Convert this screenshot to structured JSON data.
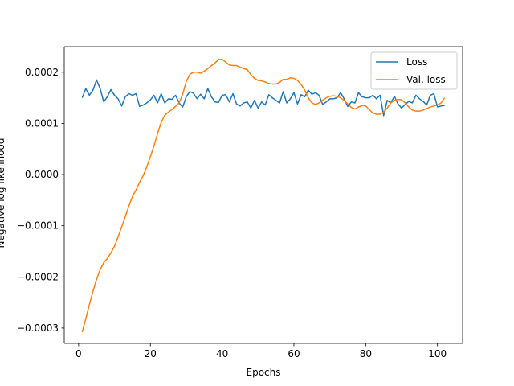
{
  "chart_data": {
    "type": "line",
    "title": "",
    "xlabel": "Epochs",
    "ylabel": "Negative log likelihood",
    "xlim": [
      -4,
      107
    ],
    "ylim": [
      -0.00033,
      0.00025
    ],
    "xticks": [
      0,
      20,
      40,
      60,
      80,
      100
    ],
    "xtick_labels": [
      "0",
      "20",
      "40",
      "60",
      "80",
      "100"
    ],
    "yticks": [
      -0.0003,
      -0.0002,
      -0.0001,
      0.0,
      0.0001,
      0.0002
    ],
    "ytick_labels": [
      "−0.0003",
      "−0.0002",
      "−0.0001",
      "0.0000",
      "0.0001",
      "0.0002"
    ],
    "grid": false,
    "legend_position": "top-right",
    "series": [
      {
        "name": "Loss",
        "color": "#1f77b4",
        "x": [
          1,
          2,
          3,
          4,
          5,
          6,
          7,
          8,
          9,
          10,
          11,
          12,
          13,
          14,
          15,
          16,
          17,
          18,
          19,
          20,
          21,
          22,
          23,
          24,
          25,
          26,
          27,
          28,
          29,
          30,
          31,
          32,
          33,
          34,
          35,
          36,
          37,
          38,
          39,
          40,
          41,
          42,
          43,
          44,
          45,
          46,
          47,
          48,
          49,
          50,
          51,
          52,
          53,
          54,
          55,
          56,
          57,
          58,
          59,
          60,
          61,
          62,
          63,
          64,
          65,
          66,
          67,
          68,
          69,
          70,
          71,
          72,
          73,
          74,
          75,
          76,
          77,
          78,
          79,
          80,
          81,
          82,
          83,
          84,
          85,
          86,
          87,
          88,
          89,
          90,
          91,
          92,
          93,
          94,
          95,
          96,
          97,
          98,
          99,
          100,
          101,
          102
        ],
        "y": [
          0.00015,
          0.000168,
          0.000155,
          0.000165,
          0.000185,
          0.000168,
          0.000142,
          0.000152,
          0.000166,
          0.000155,
          0.000148,
          0.000134,
          0.000152,
          0.000158,
          0.000155,
          0.000158,
          0.000133,
          0.000136,
          0.00014,
          0.000146,
          0.000155,
          0.00014,
          0.000158,
          0.00014,
          0.000148,
          0.000147,
          0.000155,
          0.00014,
          0.000132,
          0.000152,
          0.000162,
          0.000159,
          0.000148,
          0.000157,
          0.000148,
          0.000168,
          0.000152,
          0.000142,
          0.000141,
          0.000155,
          0.000156,
          0.000142,
          0.000158,
          0.000138,
          0.000134,
          0.00014,
          0.000142,
          0.00013,
          0.000145,
          0.00013,
          0.000142,
          0.000136,
          0.000156,
          0.00015,
          0.000145,
          0.00014,
          0.000162,
          0.00014,
          0.000148,
          0.00016,
          0.000138,
          0.000156,
          0.000152,
          0.000165,
          0.000157,
          0.00016,
          0.000155,
          0.000137,
          0.000142,
          0.000148,
          0.000148,
          0.00015,
          0.00016,
          0.000148,
          0.000133,
          0.000142,
          0.00014,
          0.00016,
          0.000152,
          0.00015,
          0.00015,
          0.000155,
          0.000148,
          0.000155,
          0.000115,
          0.000145,
          0.00014,
          0.000153,
          0.000138,
          0.00013,
          0.000137,
          0.000143,
          0.00014,
          0.000155,
          0.000148,
          0.000143,
          0.000136,
          0.000155,
          0.000158,
          0.000132,
          0.000134,
          0.000135
        ]
      },
      {
        "name": "Val. loss",
        "color": "#ff7f0e",
        "x": [
          1,
          2,
          3,
          4,
          5,
          6,
          7,
          8,
          9,
          10,
          11,
          12,
          13,
          14,
          15,
          16,
          17,
          18,
          19,
          20,
          21,
          22,
          23,
          24,
          25,
          26,
          27,
          28,
          29,
          30,
          31,
          32,
          33,
          34,
          35,
          36,
          37,
          38,
          39,
          40,
          41,
          42,
          43,
          44,
          45,
          46,
          47,
          48,
          49,
          50,
          51,
          52,
          53,
          54,
          55,
          56,
          57,
          58,
          59,
          60,
          61,
          62,
          63,
          64,
          65,
          66,
          67,
          68,
          69,
          70,
          71,
          72,
          73,
          74,
          75,
          76,
          77,
          78,
          79,
          80,
          81,
          82,
          83,
          84,
          85,
          86,
          87,
          88,
          89,
          90,
          91,
          92,
          93,
          94,
          95,
          96,
          97,
          98,
          99,
          100,
          101,
          102
        ],
        "y": [
          -0.000308,
          -0.000282,
          -0.000254,
          -0.000228,
          -0.000205,
          -0.000186,
          -0.000172,
          -0.000164,
          -0.000153,
          -0.00014,
          -0.000122,
          -0.000102,
          -8.2e-05,
          -6.2e-05,
          -4.3e-05,
          -3e-05,
          -1.5e-05,
          -2e-06,
          1.5e-05,
          3.5e-05,
          5.6e-05,
          8e-05,
          0.000102,
          0.000116,
          0.000122,
          0.000127,
          0.000133,
          0.00014,
          0.000157,
          0.000182,
          0.000196,
          0.0002,
          0.0002,
          0.000198,
          0.000202,
          0.000207,
          0.000213,
          0.000218,
          0.000225,
          0.000225,
          0.00022,
          0.000214,
          0.000213,
          0.000213,
          0.00021,
          0.000207,
          0.000205,
          0.000195,
          0.000188,
          0.000184,
          0.000183,
          0.000181,
          0.000178,
          0.000177,
          0.000177,
          0.00018,
          0.000186,
          0.000186,
          0.000189,
          0.000188,
          0.000184,
          0.000176,
          0.000165,
          0.00015,
          0.00014,
          0.000137,
          0.00014,
          0.000145,
          0.00015,
          0.000153,
          0.000154,
          0.000153,
          0.00015,
          0.000145,
          0.000138,
          0.000131,
          0.000128,
          0.000132,
          0.000135,
          0.000134,
          0.000127,
          0.00012,
          0.000118,
          0.000118,
          0.000122,
          0.00013,
          0.00014,
          0.000145,
          0.000147,
          0.000146,
          0.00014,
          0.000132,
          0.000126,
          0.000124,
          0.000124,
          0.000126,
          0.000129,
          0.000132,
          0.000134,
          0.000136,
          0.00014,
          0.00015
        ]
      }
    ]
  }
}
